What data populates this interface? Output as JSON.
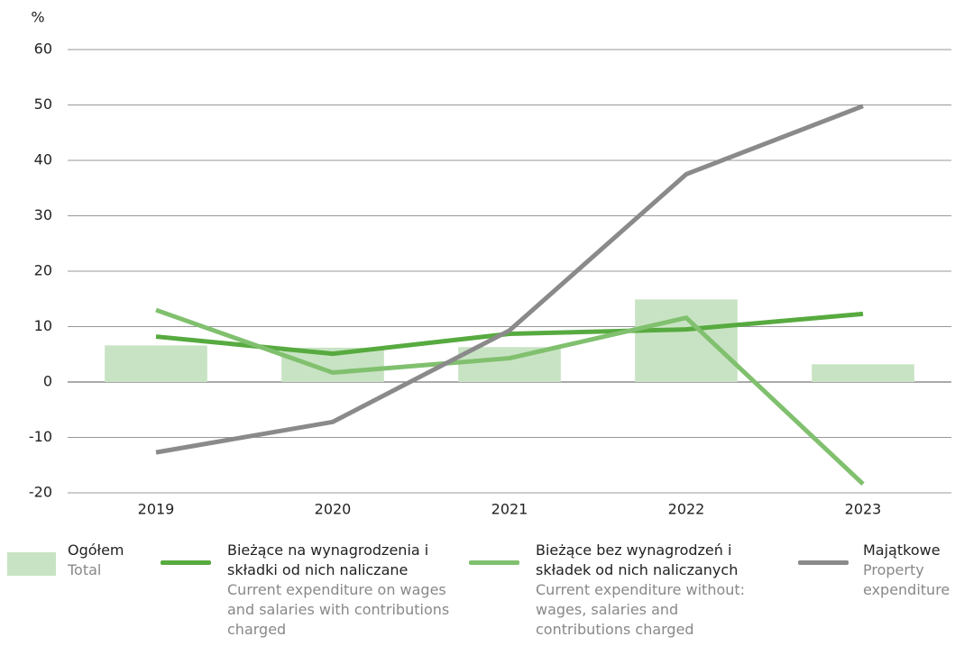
{
  "chart_data": {
    "type": "combo",
    "ylabel": "%",
    "categories": [
      "2019",
      "2020",
      "2021",
      "2022",
      "2023"
    ],
    "ylim": [
      -20,
      60
    ],
    "yticks": [
      -20,
      -10,
      0,
      10,
      20,
      30,
      40,
      50,
      60
    ],
    "grid": true,
    "series": [
      {
        "type": "bar",
        "name": "Ogółem",
        "name_en": "Total",
        "color": "#c8e3c3",
        "values": [
          6.6,
          6.2,
          6.3,
          14.9,
          3.2
        ]
      },
      {
        "type": "line",
        "name": "Bieżące na wynagrodzenia i składki od nich naliczane",
        "name_en": "Current expenditure on wages and salaries with contributions charged",
        "color": "#57aa3f",
        "values": [
          8.2,
          5.1,
          8.7,
          9.5,
          12.3
        ]
      },
      {
        "type": "line",
        "name": "Bieżące bez wynagrodzeń i składek od nich naliczanych",
        "name_en": "Current expenditure without: wages, salaries and contributions charged",
        "color": "#80c06e",
        "values": [
          13.0,
          1.7,
          4.3,
          11.6,
          -18.4
        ]
      },
      {
        "type": "line",
        "name": "Majątkowe",
        "name_en": "Property expenditure",
        "color": "#8a8a8a",
        "values": [
          -12.7,
          -7.2,
          9.3,
          37.5,
          49.8
        ]
      }
    ]
  }
}
